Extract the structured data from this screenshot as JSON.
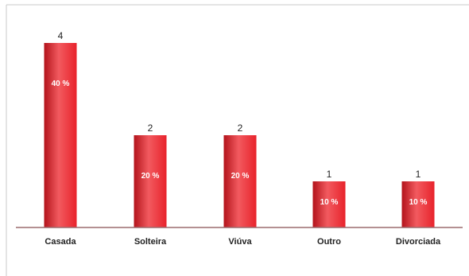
{
  "colors": {
    "bar": "#e8232c",
    "bar_dark": "#b3131b",
    "bar_light": "#f25a5f",
    "baseline": "#9b6b6e",
    "frame": "#c8c8c8"
  },
  "chart_data": {
    "type": "bar",
    "categories": [
      "Casada",
      "Solteira",
      "Viúva",
      "Outro",
      "Divorciada"
    ],
    "values": [
      4,
      2,
      2,
      1,
      1
    ],
    "value_labels": [
      "4",
      "2",
      "2",
      "1",
      "1"
    ],
    "percent_labels": [
      "40 %",
      "20 %",
      "20 %",
      "10 %",
      "10 %"
    ],
    "ylim": [
      0,
      4
    ],
    "grid": false,
    "legend": "none"
  }
}
